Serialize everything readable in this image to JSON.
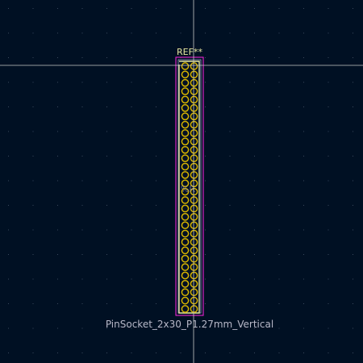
{
  "view": {
    "type": "pcb-footprint-editor-canvas"
  },
  "colors": {
    "background": "#001023",
    "grid": "#3a4a5e",
    "crosshair": "#c8c8c8",
    "courtyard": "#ff26e2",
    "fabrication": "#a0a0c8",
    "silkscreen": "#e8e8a0",
    "pad": "#d8b400",
    "value_text": "#b8b8c8"
  },
  "footprint": {
    "reference": "REF**",
    "value": "PinSocket_2x30_P1.27mm_Vertical",
    "rows": 30,
    "columns": 2,
    "fab_center_text": "%R"
  },
  "icons": {
    "crosshair": "crosshair-cursor-icon",
    "pad": "through-hole-pad-icon"
  }
}
